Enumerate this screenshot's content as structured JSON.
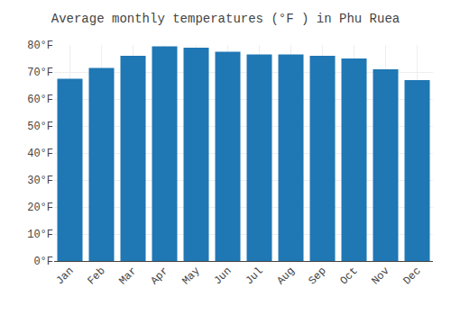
{
  "chart_data": {
    "type": "bar",
    "title": "Average monthly temperatures (°F ) in Phu Ruea",
    "categories": [
      "Jan",
      "Feb",
      "Mar",
      "Apr",
      "May",
      "Jun",
      "Jul",
      "Aug",
      "Sep",
      "Oct",
      "Nov",
      "Dec"
    ],
    "values": [
      67.5,
      71.5,
      76,
      79.5,
      79,
      77.5,
      76.5,
      76.5,
      76,
      75,
      71,
      67
    ],
    "ylim": [
      0,
      80
    ],
    "yticks": [
      {
        "value": 0,
        "label": "0°F"
      },
      {
        "value": 10,
        "label": "10°F"
      },
      {
        "value": 20,
        "label": "20°F"
      },
      {
        "value": 30,
        "label": "30°F"
      },
      {
        "value": 40,
        "label": "40°F"
      },
      {
        "value": 50,
        "label": "50°F"
      },
      {
        "value": 60,
        "label": "60°F"
      },
      {
        "value": 70,
        "label": "70°F"
      },
      {
        "value": 80,
        "label": "80°F"
      }
    ],
    "grid": true
  }
}
